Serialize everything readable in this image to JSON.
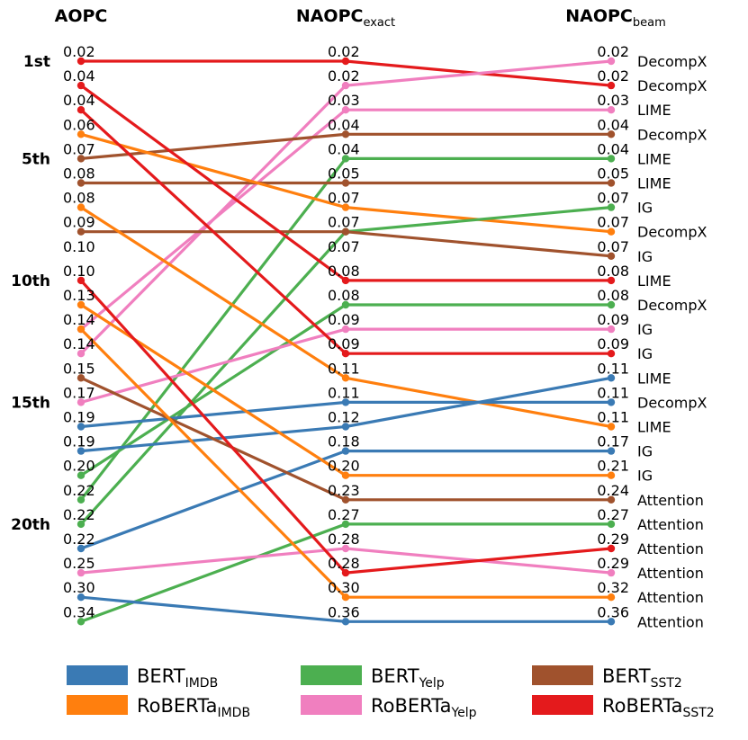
{
  "chart_data": {
    "type": "slope",
    "columns": [
      {
        "main": "AOPC",
        "sub": ""
      },
      {
        "main": "NAOPC",
        "sub": "exact"
      },
      {
        "main": "NAOPC",
        "sub": "beam"
      }
    ],
    "rank_ticks": [
      {
        "rank": 1,
        "label": "1st"
      },
      {
        "rank": 5,
        "label": "5th"
      },
      {
        "rank": 10,
        "label": "10th"
      },
      {
        "rank": 15,
        "label": "15th"
      },
      {
        "rank": 20,
        "label": "20th"
      }
    ],
    "n_ranks": 24,
    "colors": {
      "BERT_IMDB": "#3a7ab4",
      "RoBERTa_IMDB": "#ff7f0e",
      "BERT_Yelp": "#4caf50",
      "RoBERTa_Yelp": "#f07fbf",
      "BERT_SST2": "#a0522d",
      "RoBERTa_SST2": "#e41a1c"
    },
    "legend": [
      {
        "key": "BERT_IMDB",
        "main": "BERT",
        "sub": "IMDB"
      },
      {
        "key": "BERT_Yelp",
        "main": "BERT",
        "sub": "Yelp"
      },
      {
        "key": "BERT_SST2",
        "main": "BERT",
        "sub": "SST2"
      },
      {
        "key": "RoBERTa_IMDB",
        "main": "RoBERTa",
        "sub": "IMDB"
      },
      {
        "key": "RoBERTa_Yelp",
        "main": "RoBERTa",
        "sub": "Yelp"
      },
      {
        "key": "RoBERTa_SST2",
        "main": "RoBERTa",
        "sub": "SST2"
      }
    ],
    "aopc_labels": [
      "0.02",
      "0.04",
      "0.04",
      "0.06",
      "0.07",
      "0.08",
      "0.08",
      "0.09",
      "0.10",
      "0.10",
      "0.13",
      "0.14",
      "0.14",
      "0.15",
      "0.17",
      "0.19",
      "0.19",
      "0.20",
      "0.22",
      "0.22",
      "0.22",
      "0.25",
      "0.30",
      "0.34"
    ],
    "exact_labels": [
      "0.02",
      "0.02",
      "0.03",
      "0.04",
      "0.04",
      "0.05",
      "0.07",
      "0.07",
      "0.07",
      "0.08",
      "0.08",
      "0.09",
      "0.09",
      "0.11",
      "0.11",
      "0.12",
      "0.18",
      "0.20",
      "0.23",
      "0.27",
      "0.28",
      "0.28",
      "0.30",
      "0.36"
    ],
    "beam_labels": [
      "0.02",
      "0.02",
      "0.03",
      "0.04",
      "0.04",
      "0.05",
      "0.07",
      "0.07",
      "0.07",
      "0.08",
      "0.08",
      "0.09",
      "0.09",
      "0.11",
      "0.11",
      "0.11",
      "0.17",
      "0.21",
      "0.24",
      "0.27",
      "0.29",
      "0.29",
      "0.32",
      "0.36"
    ],
    "methods": [
      "DecompX",
      "DecompX",
      "LIME",
      "DecompX",
      "LIME",
      "LIME",
      "IG",
      "DecompX",
      "IG",
      "LIME",
      "DecompX",
      "IG",
      "IG",
      "LIME",
      "DecompX",
      "LIME",
      "IG",
      "IG",
      "Attention",
      "Attention",
      "Attention",
      "Attention",
      "Attention",
      "Attention"
    ],
    "series": [
      {
        "key": "RoBERTa_SST2",
        "ranks": [
          1,
          1,
          2
        ]
      },
      {
        "key": "RoBERTa_Yelp",
        "ranks": [
          13,
          2,
          1
        ]
      },
      {
        "key": "RoBERTa_Yelp",
        "ranks": [
          12,
          3,
          3
        ]
      },
      {
        "key": "BERT_SST2",
        "ranks": [
          5,
          4,
          4
        ]
      },
      {
        "key": "BERT_Yelp",
        "ranks": [
          19,
          5,
          5
        ]
      },
      {
        "key": "BERT_SST2",
        "ranks": [
          6,
          6,
          6
        ]
      },
      {
        "key": "RoBERTa_IMDB",
        "ranks": [
          4,
          7,
          8
        ]
      },
      {
        "key": "BERT_Yelp",
        "ranks": [
          20,
          8,
          7
        ]
      },
      {
        "key": "BERT_SST2",
        "ranks": [
          8,
          8,
          9
        ]
      },
      {
        "key": "RoBERTa_SST2",
        "ranks": [
          2,
          10,
          10
        ]
      },
      {
        "key": "BERT_Yelp",
        "ranks": [
          18,
          11,
          11
        ]
      },
      {
        "key": "RoBERTa_Yelp",
        "ranks": [
          15,
          12,
          12
        ]
      },
      {
        "key": "RoBERTa_SST2",
        "ranks": [
          3,
          13,
          13
        ]
      },
      {
        "key": "RoBERTa_IMDB",
        "ranks": [
          7,
          14,
          16
        ]
      },
      {
        "key": "BERT_IMDB",
        "ranks": [
          16,
          15,
          15
        ]
      },
      {
        "key": "BERT_IMDB",
        "ranks": [
          17,
          16,
          14
        ]
      },
      {
        "key": "BERT_IMDB",
        "ranks": [
          21,
          17,
          17
        ]
      },
      {
        "key": "RoBERTa_IMDB",
        "ranks": [
          11,
          18,
          18
        ]
      },
      {
        "key": "BERT_SST2",
        "ranks": [
          14,
          19,
          19
        ]
      },
      {
        "key": "BERT_Yelp",
        "ranks": [
          24,
          20,
          20
        ]
      },
      {
        "key": "RoBERTa_Yelp",
        "ranks": [
          22,
          21,
          22
        ]
      },
      {
        "key": "RoBERTa_SST2",
        "ranks": [
          10,
          22,
          21
        ]
      },
      {
        "key": "RoBERTa_IMDB",
        "ranks": [
          12,
          23,
          23
        ]
      },
      {
        "key": "BERT_IMDB",
        "ranks": [
          23,
          24,
          24
        ]
      }
    ]
  }
}
